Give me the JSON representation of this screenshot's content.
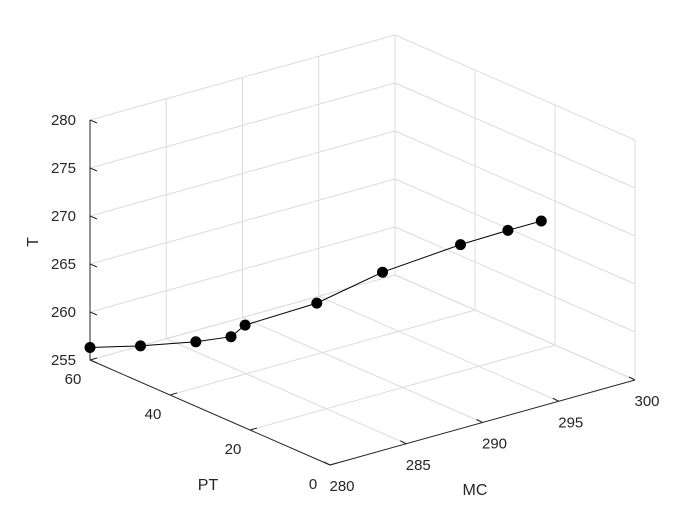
{
  "chart_data": {
    "type": "line",
    "dimensions": "3d",
    "title": "",
    "xlabel": "MC",
    "ylabel": "PT",
    "zlabel": "T",
    "xlim": [
      280,
      300
    ],
    "ylim": [
      0,
      60
    ],
    "zlim": [
      255,
      280
    ],
    "xticks": [
      "280",
      "285",
      "290",
      "295",
      "300"
    ],
    "yticks": [
      "0",
      "20",
      "40",
      "60"
    ],
    "zticks": [
      "255",
      "260",
      "265",
      "270",
      "275",
      "280"
    ],
    "grid": true,
    "series": [
      {
        "line_color": "#000000",
        "marker": "filled-circle",
        "points": [
          {
            "x": 280.0,
            "y": 60,
            "z": 256.3
          },
          {
            "x": 282.0,
            "y": 55,
            "z": 256.5
          },
          {
            "x": 283.0,
            "y": 45,
            "z": 258.3
          },
          {
            "x": 284.0,
            "y": 40,
            "z": 259.3
          },
          {
            "x": 284.4,
            "y": 38,
            "z": 260.7
          },
          {
            "x": 287.0,
            "y": 30,
            "z": 263.3
          },
          {
            "x": 290.0,
            "y": 25,
            "z": 266.1
          },
          {
            "x": 293.8,
            "y": 20,
            "z": 268.2
          },
          {
            "x": 295.6,
            "y": 15,
            "z": 269.8
          },
          {
            "x": 297.0,
            "y": 12,
            "z": 270.7
          }
        ]
      }
    ]
  }
}
